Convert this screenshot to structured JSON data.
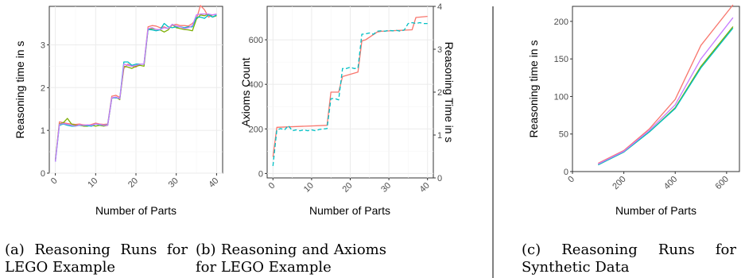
{
  "captions": {
    "a": {
      "label": "(a)",
      "line1": [
        "Reasoning",
        "Runs",
        "for"
      ],
      "line2": "LEGO Example"
    },
    "b": {
      "label": "(b)",
      "line1": [
        "Reasoning",
        "and",
        "Axioms"
      ],
      "line2": "for LEGO Example"
    },
    "c": {
      "label": "(c)",
      "line1": [
        "Reasoning",
        "Runs",
        "for"
      ],
      "line2": "Synthetic Data"
    }
  },
  "chart_data": [
    {
      "id": "a",
      "type": "line",
      "xlabel": "Number of Parts",
      "ylabel": "Reasoning time in s",
      "xlim": [
        -1.5,
        41.5
      ],
      "ylim": [
        0,
        3.9
      ],
      "xticks": [
        0,
        10,
        20,
        30,
        40
      ],
      "yticks": [
        0,
        1,
        2,
        3
      ],
      "grid": true,
      "x": [
        0,
        1,
        2,
        3,
        4,
        5,
        6,
        7,
        8,
        9,
        10,
        11,
        12,
        13,
        14,
        15,
        16,
        17,
        18,
        19,
        20,
        21,
        22,
        23,
        24,
        25,
        26,
        27,
        28,
        29,
        30,
        31,
        32,
        33,
        34,
        35,
        36,
        37,
        38,
        39,
        40
      ],
      "series": [
        {
          "color": "#F8766D",
          "values": [
            0.28,
            1.2,
            1.18,
            1.16,
            1.15,
            1.14,
            1.15,
            1.13,
            1.12,
            1.14,
            1.17,
            1.15,
            1.14,
            1.15,
            1.8,
            1.82,
            1.77,
            2.45,
            2.55,
            2.5,
            2.48,
            2.55,
            2.55,
            3.42,
            3.45,
            3.44,
            3.4,
            3.42,
            3.38,
            3.46,
            3.48,
            3.45,
            3.45,
            3.44,
            3.5,
            3.6,
            3.92,
            3.82,
            3.65,
            3.7,
            3.72
          ]
        },
        {
          "color": "#7CAE00",
          "values": [
            0.3,
            1.15,
            1.18,
            1.28,
            1.15,
            1.12,
            1.12,
            1.1,
            1.1,
            1.12,
            1.1,
            1.12,
            1.1,
            1.12,
            1.75,
            1.78,
            1.72,
            2.5,
            2.48,
            2.45,
            2.5,
            2.52,
            2.5,
            3.35,
            3.38,
            3.36,
            3.35,
            3.3,
            3.35,
            3.48,
            3.4,
            3.38,
            3.36,
            3.35,
            3.33,
            3.6,
            3.7,
            3.68,
            3.72,
            3.65,
            3.68
          ]
        },
        {
          "color": "#00BFC4",
          "values": [
            0.27,
            1.12,
            1.15,
            1.12,
            1.1,
            1.1,
            1.12,
            1.12,
            1.11,
            1.1,
            1.15,
            1.13,
            1.12,
            1.13,
            1.76,
            1.76,
            1.75,
            2.6,
            2.6,
            2.52,
            2.55,
            2.55,
            2.55,
            3.36,
            3.35,
            3.33,
            3.35,
            3.5,
            3.42,
            3.4,
            3.42,
            3.42,
            3.4,
            3.42,
            3.42,
            3.64,
            3.65,
            3.62,
            3.7,
            3.65,
            3.7
          ]
        },
        {
          "color": "#C77CFF",
          "values": [
            0.27,
            1.14,
            1.16,
            1.14,
            1.12,
            1.1,
            1.13,
            1.12,
            1.13,
            1.12,
            1.15,
            1.14,
            1.12,
            1.12,
            1.76,
            1.78,
            1.74,
            2.55,
            2.52,
            2.5,
            2.52,
            2.55,
            2.55,
            3.38,
            3.4,
            3.36,
            3.36,
            3.4,
            3.38,
            3.48,
            3.44,
            3.42,
            3.38,
            3.4,
            3.45,
            3.7,
            3.72,
            3.72,
            3.72,
            3.7,
            3.72
          ]
        }
      ]
    },
    {
      "id": "b",
      "type": "line",
      "xlabel": "Number of Parts",
      "ylabel": "Axioms Count",
      "y2label": "Reasoning Time in s",
      "xlim": [
        -1.5,
        41.5
      ],
      "ylim": [
        -20,
        750
      ],
      "xticks": [
        0,
        10,
        20,
        30,
        40
      ],
      "yticks": [
        0,
        200,
        400,
        600
      ],
      "y2lim": [
        0,
        4
      ],
      "y2ticks": [
        0,
        1,
        2,
        3,
        4
      ],
      "grid": true,
      "series": [
        {
          "color": "#F8766D",
          "style": "solid",
          "axis": "left",
          "x": [
            0,
            1,
            14,
            15,
            17,
            18,
            22,
            23,
            24,
            27,
            28,
            36,
            37,
            40
          ],
          "values": [
            75,
            207,
            216,
            365,
            365,
            435,
            455,
            595,
            600,
            635,
            638,
            645,
            700,
            705
          ]
        },
        {
          "color": "#00BFC4",
          "style": "dashed",
          "axis": "right",
          "x": [
            0,
            1,
            2,
            3,
            4,
            5,
            6,
            7,
            8,
            9,
            10,
            11,
            12,
            13,
            14,
            15,
            16,
            17,
            18,
            19,
            20,
            21,
            22,
            23,
            24,
            25,
            26,
            27,
            28,
            29,
            30,
            31,
            32,
            33,
            34,
            35,
            36,
            37,
            38,
            39,
            40
          ],
          "values": [
            0.28,
            1.12,
            1.15,
            1.12,
            1.22,
            1.1,
            1.12,
            1.1,
            1.12,
            1.1,
            1.12,
            1.1,
            1.13,
            1.14,
            1.15,
            1.85,
            1.85,
            1.82,
            2.55,
            2.55,
            2.58,
            2.55,
            2.56,
            3.35,
            3.36,
            3.38,
            3.35,
            3.42,
            3.43,
            3.42,
            3.44,
            3.43,
            3.44,
            3.42,
            3.45,
            3.6,
            3.62,
            3.6,
            3.62,
            3.6,
            3.6
          ]
        }
      ]
    },
    {
      "id": "c",
      "type": "line",
      "xlabel": "Number of Parts",
      "ylabel": "Reasoning time in s",
      "xlim": [
        0,
        650
      ],
      "ylim": [
        0,
        220
      ],
      "xticks": [
        0,
        200,
        400,
        600
      ],
      "yticks": [
        0,
        50,
        100,
        150,
        200
      ],
      "grid": false,
      "x": [
        100,
        200,
        300,
        400,
        500,
        625
      ],
      "series": [
        {
          "color": "#F8766D",
          "values": [
            11,
            28,
            57,
            96,
            168,
            222
          ]
        },
        {
          "color": "#7CAE00",
          "values": [
            9,
            26,
            53,
            85,
            140,
            193
          ]
        },
        {
          "color": "#00BFC4",
          "values": [
            9,
            26,
            53,
            84,
            138,
            191
          ]
        },
        {
          "color": "#C77CFF",
          "values": [
            10,
            27,
            55,
            89,
            150,
            205
          ]
        }
      ]
    }
  ]
}
